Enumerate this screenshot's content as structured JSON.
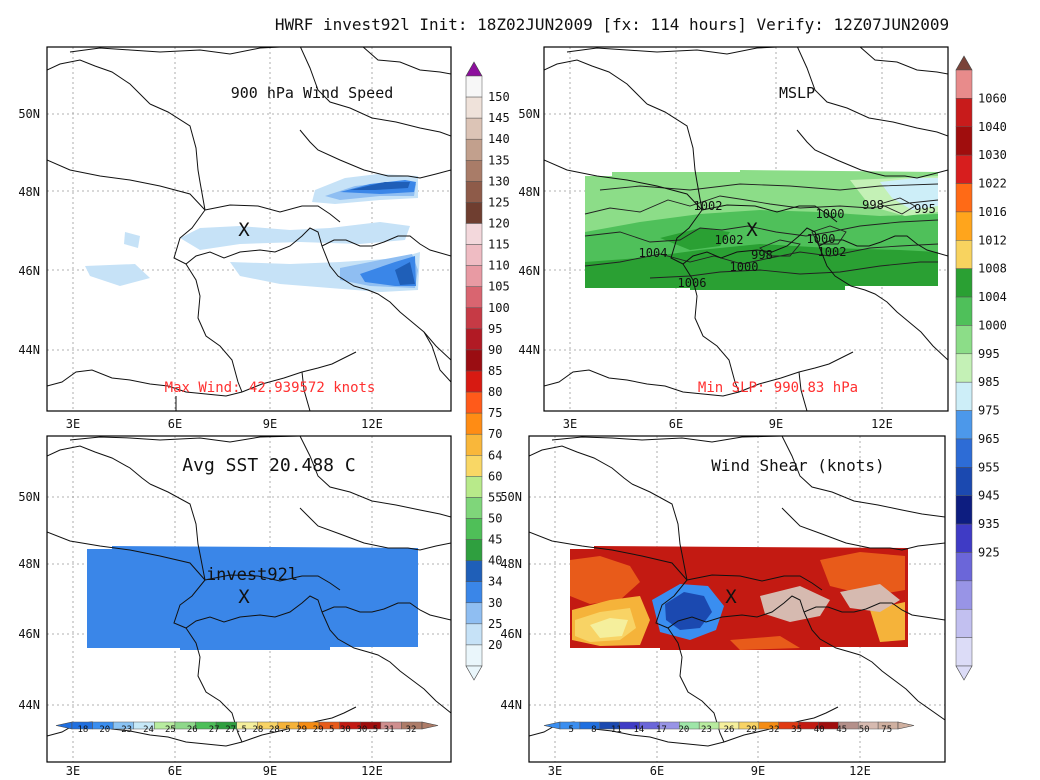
{
  "header": {
    "title": "HWRF invest92l Init: 18Z02JUN2009 [fx: 114 hours] Verify: 12Z07JUN2009"
  },
  "axes": {
    "lon_labels": [
      "3E",
      "6E",
      "9E",
      "12E"
    ],
    "lat_labels": [
      "50N",
      "48N",
      "46N",
      "44N"
    ]
  },
  "panels": {
    "wind": {
      "title": "900 hPa Wind Speed",
      "annotation": "Max Wind: 42.939572 knots",
      "storm_marker": "X"
    },
    "mslp": {
      "title": "MSLP",
      "annotation": "Min SLP: 990.83 hPa",
      "storm_marker": "X",
      "contour_labels": [
        "1002",
        "1000",
        "998",
        "995",
        "1002",
        "1000",
        "1004",
        "998",
        "1002",
        "1000",
        "1006"
      ]
    },
    "sst": {
      "title": "Avg SST 20.488 C",
      "storm_label": "invest92l",
      "storm_marker": "X"
    },
    "shear": {
      "title": "Wind Shear (knots)",
      "storm_marker": "X"
    }
  },
  "colorbars": {
    "wind": {
      "labels": [
        "150",
        "145",
        "140",
        "135",
        "130",
        "125",
        "120",
        "115",
        "110",
        "105",
        "100",
        "95",
        "90",
        "85",
        "80",
        "75",
        "70",
        "64",
        "60",
        "55",
        "50",
        "45",
        "40",
        "34",
        "30",
        "25",
        "20"
      ],
      "colors": [
        "#f7f7f7",
        "#efe2da",
        "#dcc4b6",
        "#c2a08d",
        "#a97c68",
        "#8e5b49",
        "#6f3e30",
        "#f3d8dc",
        "#efbcc3",
        "#e89aa3",
        "#d96570",
        "#c63a45",
        "#b11a24",
        "#9a0d12",
        "#d71a12",
        "#ff5a1a",
        "#ff8c14",
        "#f9b73a",
        "#f9d765",
        "#b8ea8a",
        "#7fd67a",
        "#4fbf58",
        "#2f9f3f",
        "#1f5fb8",
        "#3a86e8",
        "#8fbef2",
        "#c6e2f7",
        "#eaf6fb"
      ],
      "top_arrow_color": "#8d0f9d"
    },
    "mslp": {
      "labels": [
        "1060",
        "1040",
        "1030",
        "1022",
        "1016",
        "1012",
        "1008",
        "1004",
        "1000",
        "995",
        "985",
        "975",
        "965",
        "955",
        "945",
        "935",
        "925"
      ],
      "colors": [
        "#e88b8b",
        "#c81b1b",
        "#a00d0d",
        "#d71e1e",
        "#ff6a16",
        "#ffa51c",
        "#f8d35f",
        "#2aa033",
        "#4fc05a",
        "#8cdd88",
        "#c4f1b6",
        "#cdeef8",
        "#4c98ea",
        "#2d6cd6",
        "#1b49b0",
        "#0d1d80",
        "#3f3bc5",
        "#6b66d9",
        "#9894e6",
        "#c2c0f0",
        "#dcdcf7"
      ],
      "top_arrow_color": "#7a4339"
    },
    "sst": {
      "labels": [
        "18",
        "20",
        "23",
        "24",
        "25",
        "26",
        "27",
        "27.5",
        "28",
        "28.5",
        "29",
        "29.5",
        "30",
        "30.5",
        "31",
        "32"
      ],
      "colors": [
        "#1f6fe0",
        "#3a8ef0",
        "#8ac3f4",
        "#c6e8f7",
        "#b8ec9f",
        "#8ed88a",
        "#4cbf58",
        "#2f9f3f",
        "#f5ef9c",
        "#f8d365",
        "#f5b33a",
        "#f58c14",
        "#e85b1a",
        "#c31a12",
        "#a00d0d",
        "#cf8e8e",
        "#ad7c68"
      ]
    },
    "shear": {
      "labels": [
        "5",
        "8",
        "11",
        "14",
        "17",
        "20",
        "23",
        "26",
        "29",
        "32",
        "35",
        "40",
        "45",
        "50",
        "75"
      ],
      "colors": [
        "#3a8ef0",
        "#1f6fe0",
        "#1b49b0",
        "#3f3bc5",
        "#6b66d9",
        "#9894e6",
        "#9ee6a8",
        "#b8ec9f",
        "#f5ef9c",
        "#f8d365",
        "#f58c14",
        "#e03a12",
        "#c31a12",
        "#a00d0d",
        "#b4908a",
        "#d6bab0",
        "#cfb0a0"
      ]
    }
  },
  "fields": {
    "wind_fill": [
      "#c6e2f7",
      "#8fbef2",
      "#3a86e8",
      "#1f5fb8"
    ],
    "mslp_fill": [
      "#8cdd88",
      "#4fc05a",
      "#2aa033",
      "#c4f1b6",
      "#cdeef8"
    ],
    "sst_fill": "#3a86e8",
    "shear_fill": [
      "#c31a12",
      "#e85b1a",
      "#f5b33a",
      "#f8d365",
      "#f5ef9c",
      "#3a8ef0",
      "#1b49b0",
      "#d6bab0"
    ]
  }
}
